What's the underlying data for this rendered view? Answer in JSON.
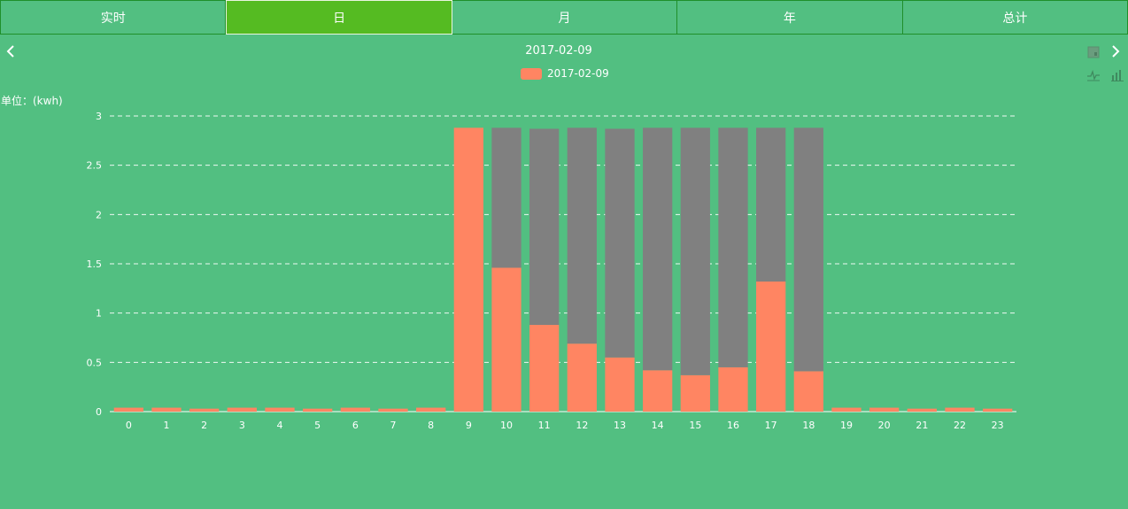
{
  "tabs": [
    {
      "label": "实时",
      "active": false
    },
    {
      "label": "日",
      "active": true
    },
    {
      "label": "月",
      "active": false
    },
    {
      "label": "年",
      "active": false
    },
    {
      "label": "总计",
      "active": false
    }
  ],
  "date_title": "2017-02-09",
  "unit_label": "单位：(kwh)",
  "colors": {
    "background": "#52bf81",
    "bar": "#ff8562",
    "stack_remainder": "#808080",
    "tab_active": "#55bb22"
  },
  "icons": {
    "prev": "chevron-left-icon",
    "next": "chevron-right-icon",
    "save": "save-image-icon",
    "line": "line-chart-icon",
    "bar": "bar-chart-icon"
  },
  "chart_data": {
    "type": "bar",
    "title": "",
    "xlabel": "",
    "ylabel": "单位：(kwh)",
    "ylim": [
      0,
      3
    ],
    "yticks": [
      "0",
      "0.5",
      "1",
      "1.5",
      "2",
      "2.5",
      "3"
    ],
    "categories": [
      "0",
      "1",
      "2",
      "3",
      "4",
      "5",
      "6",
      "7",
      "8",
      "9",
      "10",
      "11",
      "12",
      "13",
      "14",
      "15",
      "16",
      "17",
      "18",
      "19",
      "20",
      "21",
      "22",
      "23"
    ],
    "series": [
      {
        "name": "2017-02-09",
        "color": "#ff8562",
        "values": [
          0.04,
          0.04,
          0.03,
          0.04,
          0.04,
          0.03,
          0.04,
          0.03,
          0.04,
          2.88,
          1.46,
          0.88,
          0.69,
          0.55,
          0.42,
          0.37,
          0.45,
          1.32,
          0.41,
          0.04,
          0.04,
          0.03,
          0.04,
          0.03
        ]
      },
      {
        "color": "#808080",
        "values": [
          0,
          0,
          0,
          0,
          0,
          0,
          0,
          0,
          0,
          0,
          1.42,
          1.99,
          2.19,
          2.32,
          2.46,
          2.51,
          2.43,
          1.56,
          2.47,
          0,
          0,
          0,
          0,
          0
        ]
      }
    ],
    "grid": true,
    "legend": "top-center"
  }
}
